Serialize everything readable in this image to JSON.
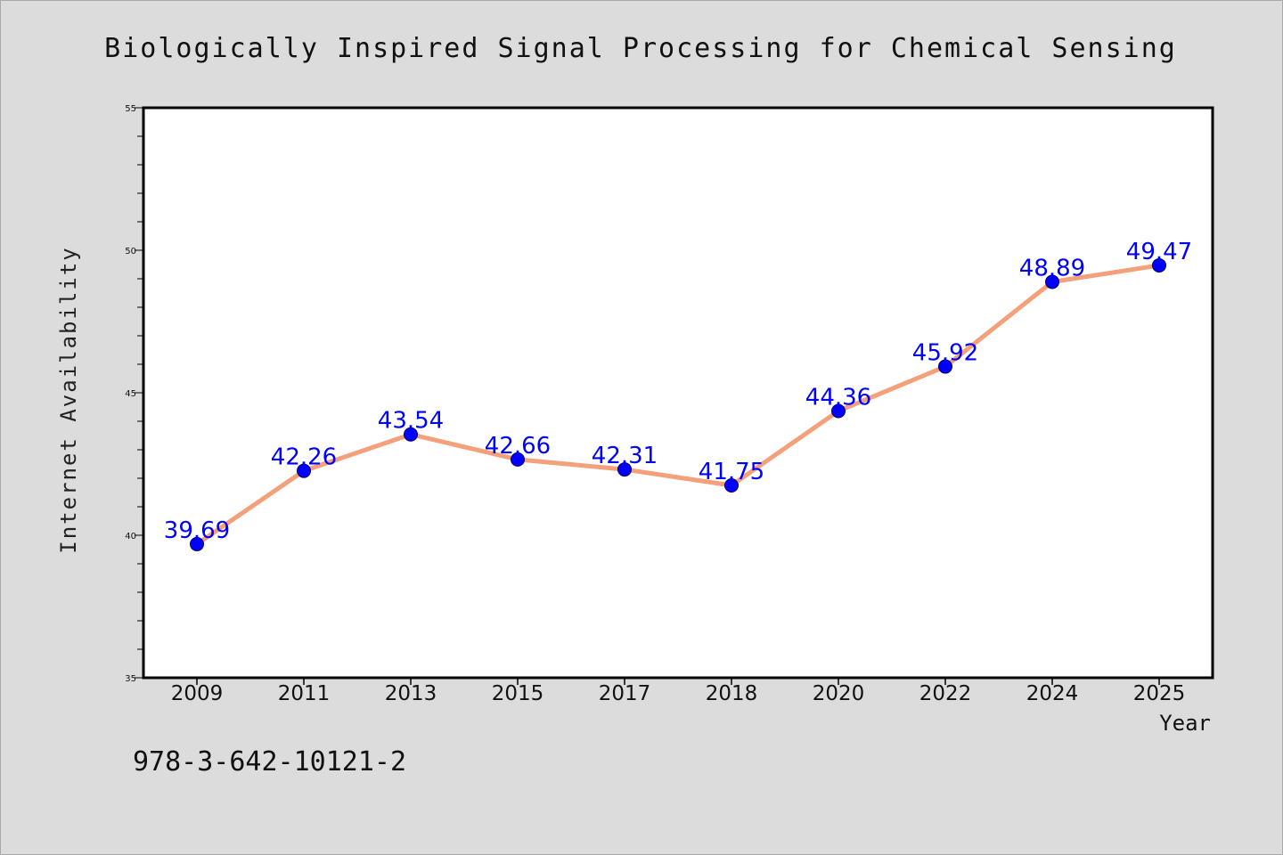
{
  "chart_data": {
    "type": "line",
    "title": "Biologically Inspired Signal Processing for Chemical Sensing",
    "xlabel": "Year",
    "ylabel": "Internet Availability",
    "categories": [
      "2009",
      "2011",
      "2013",
      "2015",
      "2017",
      "2018",
      "2020",
      "2022",
      "2024",
      "2025"
    ],
    "series": [
      {
        "values": [
          39.69,
          42.26,
          43.54,
          42.66,
          42.31,
          41.75,
          44.36,
          45.92,
          48.89,
          49.47
        ],
        "data_labels": [
          "39.69",
          "42.26",
          "43.54",
          "42.66",
          "42.31",
          "41.75",
          "44.36",
          "45.92",
          "48.89",
          "49.47"
        ],
        "line_color": "#f4a07a",
        "marker_color": "#0000ff"
      }
    ],
    "ylim": [
      35,
      55
    ],
    "yticks": [
      "35",
      "40",
      "45",
      "50",
      "55"
    ],
    "grid": false,
    "legend": "none"
  },
  "footer": {
    "isbn": "978-3-642-10121-2"
  },
  "colors": {
    "background": "#dcdcdc",
    "plot_background": "#ffffff",
    "label_color": "#0000ff"
  }
}
